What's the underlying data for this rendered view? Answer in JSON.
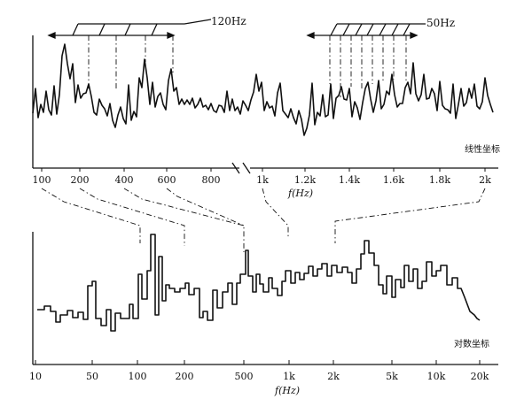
{
  "top_panel": {
    "scale_label": "线性坐标",
    "ticks_left": [
      "100",
      "200",
      "400",
      "600",
      "800"
    ],
    "ticks_right": [
      "1k",
      "1.2k",
      "1.4k",
      "1.6k",
      "1.8k",
      "2k"
    ],
    "axis_label": "f(Hz)",
    "annotation_120": "120Hz",
    "annotation_50": "50Hz"
  },
  "bottom_panel": {
    "scale_label": "对数坐标",
    "ticks": [
      "10",
      "50",
      "100",
      "200",
      "500",
      "1k",
      "2k",
      "5k",
      "10k",
      "20k"
    ],
    "axis_label": "f(Hz)"
  }
}
